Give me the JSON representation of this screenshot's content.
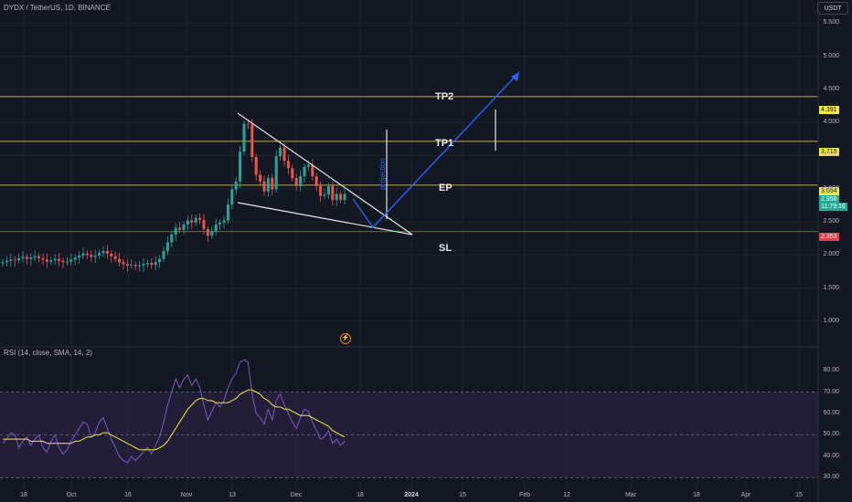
{
  "header": {
    "symbol": "DYDX / TetherUS, 1D, BINANCE",
    "currency": "USDT"
  },
  "rsi_title": "RSI (14, close, SMA, 14, 2)",
  "annotations": {
    "tp2": "TP2",
    "tp1": "TP1",
    "ep": "EP",
    "sl": "SL",
    "projection": "projection"
  },
  "price_tags": {
    "tp2": "4.391",
    "tp1": "3.715",
    "ep": "3.054",
    "last": "2.958",
    "countdown": "11:79:16",
    "sl": "2.353"
  },
  "colors": {
    "background": "#131722",
    "up": "#26a69a",
    "down": "#ef5350",
    "level": "#f5e642",
    "stop": "#f23645",
    "projection": "#2962ff",
    "rsi_line": "#7e57c2",
    "rsi_ma": "#f5e642",
    "rsi_band": "#2a2240"
  },
  "chart_data": [
    {
      "type": "candlestick",
      "title": "DYDX / TetherUS, 1D, BINANCE",
      "ylim": [
        0.75,
        5.85
      ],
      "y_ticks": [
        "5.500",
        "5.000",
        "4.500",
        "4.000",
        "3.500",
        "3.000",
        "2.500",
        "2.000",
        "1.500",
        "1.000"
      ],
      "x_ticks": [
        "18",
        "Oct",
        "16",
        "Nov",
        "13",
        "Dec",
        "18",
        "2024",
        "15",
        "Feb",
        "12",
        "Mar",
        "18",
        "Apr",
        "15"
      ],
      "closes": [
        1.89,
        1.91,
        1.93,
        1.92,
        1.95,
        1.97,
        1.94,
        1.96,
        1.98,
        1.95,
        1.93,
        1.9,
        1.92,
        1.94,
        1.91,
        1.89,
        1.9,
        1.93,
        1.96,
        1.99,
        2.02,
        2.0,
        1.97,
        1.99,
        2.03,
        2.06,
        2.02,
        1.98,
        1.94,
        1.89,
        1.86,
        1.84,
        1.85,
        1.83,
        1.84,
        1.86,
        1.88,
        1.85,
        1.89,
        1.94,
        2.06,
        2.19,
        2.31,
        2.41,
        2.38,
        2.46,
        2.52,
        2.49,
        2.56,
        2.53,
        2.39,
        2.29,
        2.36,
        2.46,
        2.49,
        2.52,
        2.76,
        2.99,
        3.11,
        3.56,
        3.98,
        3.97,
        3.48,
        3.21,
        3.11,
        2.96,
        3.16,
        2.99,
        3.49,
        3.62,
        3.42,
        3.31,
        3.16,
        3.04,
        3.19,
        3.33,
        3.36,
        3.19,
        3.04,
        2.89,
        2.91,
        3.04,
        2.83,
        2.92,
        2.83,
        2.92
      ],
      "levels": [
        {
          "name": "TP2",
          "value": 4.391
        },
        {
          "name": "TP1",
          "value": 3.715
        },
        {
          "name": "EP",
          "value": 3.054
        },
        {
          "name": "SL",
          "value": 2.353
        }
      ],
      "last_price": 2.958
    },
    {
      "type": "line",
      "title": "RSI (14, close, SMA, 14, 2)",
      "ylim": [
        28,
        86
      ],
      "y_ticks": [
        "80.00",
        "70.00",
        "60.00",
        "50.00",
        "40.00",
        "30.00"
      ],
      "band": [
        30,
        70
      ],
      "series": [
        {
          "values": [
            46,
            48,
            51,
            50,
            44,
            47,
            49,
            45,
            48,
            50,
            44,
            42,
            47,
            50,
            44,
            41,
            43,
            47,
            50,
            53,
            56,
            55,
            49,
            51,
            56,
            58,
            53,
            48,
            44,
            40,
            38,
            37,
            40,
            38,
            40,
            42,
            44,
            41,
            45,
            49,
            56,
            64,
            70,
            76,
            72,
            76,
            78,
            73,
            76,
            72,
            64,
            57,
            61,
            65,
            63,
            66,
            72,
            76,
            79,
            84,
            85,
            84,
            69,
            60,
            58,
            55,
            62,
            57,
            66,
            69,
            64,
            60,
            56,
            53,
            58,
            62,
            61,
            56,
            52,
            48,
            49,
            52,
            46,
            48,
            45,
            47
          ]
        },
        {
          "values": [
            48,
            48,
            48,
            48,
            48,
            48,
            48,
            47,
            47,
            47,
            47,
            46,
            46,
            46,
            46,
            46,
            46,
            46,
            47,
            47,
            48,
            49,
            49,
            50,
            50,
            51,
            51,
            50,
            49,
            48,
            47,
            46,
            45,
            44,
            43,
            43,
            43,
            43,
            43,
            44,
            45,
            47,
            50,
            53,
            56,
            59,
            62,
            64,
            66,
            67,
            67,
            66,
            66,
            65,
            65,
            65,
            65,
            66,
            67,
            69,
            70,
            71,
            71,
            70,
            69,
            67,
            66,
            64,
            63,
            63,
            62,
            62,
            61,
            60,
            59,
            59,
            59,
            58,
            57,
            56,
            55,
            54,
            52,
            51,
            50,
            49
          ]
        }
      ]
    }
  ]
}
